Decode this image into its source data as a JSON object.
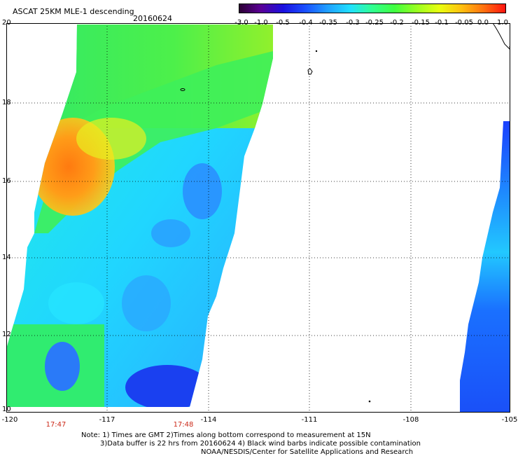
{
  "header": {
    "title": "ASCAT 25KM MLE-1 descending",
    "date": "20160624"
  },
  "colorbar": {
    "labels": [
      "-3.0",
      "-1.0",
      "-0.5",
      "-0.4",
      "-0.35",
      "-0.3",
      "-0.25",
      "-0.2",
      "-0.15",
      "-0.1",
      "-0.05",
      "0.0",
      "1.0"
    ],
    "colors": [
      "#2a0030",
      "#5a0096",
      "#1a10e0",
      "#1a50ff",
      "#20a0ff",
      "#20e0ff",
      "#30ff90",
      "#40ff40",
      "#9aff20",
      "#e8ff10",
      "#ffc010",
      "#ff7010",
      "#ff1010"
    ]
  },
  "map": {
    "lat_labels": [
      "20",
      "18",
      "16",
      "14",
      "12",
      "10"
    ],
    "lon_labels": [
      "-120",
      "-117",
      "-114",
      "-111",
      "-108",
      "-105"
    ],
    "time_labels": [
      "17:47",
      "17:48"
    ],
    "time_color": "#cc2a1a"
  },
  "notes": {
    "line1": "Note: 1) Times are GMT 2)Times along bottom correspond to measurement at 15N",
    "line2": "3)Data buffer is 22 hrs from 20160624 4) Black wind barbs indicate possible contamination",
    "line3": "NOAA/NESDIS/Center for Satellite Applications and Research"
  }
}
